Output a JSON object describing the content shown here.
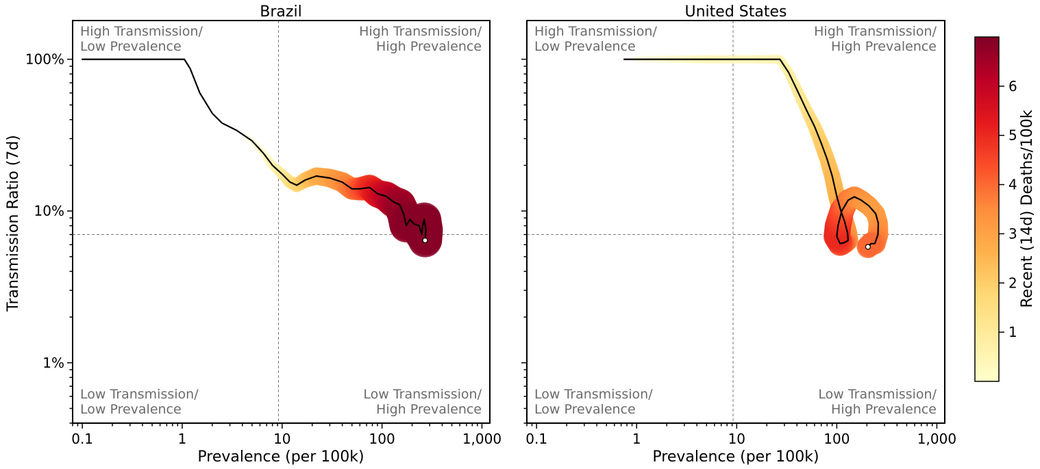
{
  "chart_data": [
    {
      "type": "scatter",
      "title": "Brazil",
      "xlabel": "Prevalence (per 100k)",
      "ylabel": "Transmission Ratio (7d)",
      "x_scale": "log",
      "y_scale": "log",
      "xlim": [
        0.08,
        1200
      ],
      "ylim": [
        0.004,
        1.8
      ],
      "x_ticks": [
        {
          "value": 0.1,
          "label": "0.1"
        },
        {
          "value": 1,
          "label": "1"
        },
        {
          "value": 10,
          "label": "10"
        },
        {
          "value": 100,
          "label": "100"
        },
        {
          "value": 1000,
          "label": "1,000"
        }
      ],
      "y_ticks": [
        {
          "value": 0.01,
          "label": "1%"
        },
        {
          "value": 0.1,
          "label": "10%"
        },
        {
          "value": 1,
          "label": "100%"
        }
      ],
      "reference_lines": {
        "x": 9.2,
        "y": 0.07
      },
      "quadrant_labels": {
        "top_left": [
          "High Transmission/",
          "Low Prevalence"
        ],
        "top_right": [
          "High Transmission/",
          "High Prevalence"
        ],
        "bottom_left": [
          "Low Transmission/",
          "Low Prevalence"
        ],
        "bottom_right": [
          "Low Transmission/",
          "High Prevalence"
        ]
      },
      "grid": false,
      "trail": [
        {
          "x": 0.1,
          "y": 1.0,
          "d": 0
        },
        {
          "x": 0.3,
          "y": 1.0,
          "d": 0
        },
        {
          "x": 1.05,
          "y": 1.0,
          "d": 0
        },
        {
          "x": 1.2,
          "y": 0.87,
          "d": 0
        },
        {
          "x": 1.5,
          "y": 0.6,
          "d": 0
        },
        {
          "x": 2.0,
          "y": 0.44,
          "d": 0
        },
        {
          "x": 2.5,
          "y": 0.38,
          "d": 0
        },
        {
          "x": 3.5,
          "y": 0.34,
          "d": 0
        },
        {
          "x": 5.0,
          "y": 0.29,
          "d": 0.1
        },
        {
          "x": 6.5,
          "y": 0.24,
          "d": 0.3
        },
        {
          "x": 8.0,
          "y": 0.2,
          "d": 0.6
        },
        {
          "x": 10.0,
          "y": 0.175,
          "d": 1.0
        },
        {
          "x": 12.0,
          "y": 0.155,
          "d": 1.4
        },
        {
          "x": 14.0,
          "y": 0.148,
          "d": 1.8
        },
        {
          "x": 17.0,
          "y": 0.16,
          "d": 2.2
        },
        {
          "x": 22.0,
          "y": 0.17,
          "d": 2.7
        },
        {
          "x": 30.0,
          "y": 0.165,
          "d": 3.0
        },
        {
          "x": 40.0,
          "y": 0.155,
          "d": 3.4
        },
        {
          "x": 50.0,
          "y": 0.14,
          "d": 3.8
        },
        {
          "x": 60.0,
          "y": 0.14,
          "d": 4.2
        },
        {
          "x": 75.0,
          "y": 0.143,
          "d": 4.8
        },
        {
          "x": 90.0,
          "y": 0.13,
          "d": 5.3
        },
        {
          "x": 110.0,
          "y": 0.125,
          "d": 5.8
        },
        {
          "x": 130.0,
          "y": 0.115,
          "d": 6.2
        },
        {
          "x": 150.0,
          "y": 0.11,
          "d": 6.5
        },
        {
          "x": 165.0,
          "y": 0.095,
          "d": 6.7
        },
        {
          "x": 175.0,
          "y": 0.08,
          "d": 6.8
        },
        {
          "x": 190.0,
          "y": 0.088,
          "d": 6.85
        },
        {
          "x": 210.0,
          "y": 0.082,
          "d": 6.9
        },
        {
          "x": 235.0,
          "y": 0.08,
          "d": 6.9
        },
        {
          "x": 250.0,
          "y": 0.07,
          "d": 6.9
        },
        {
          "x": 255.0,
          "y": 0.08,
          "d": 6.9
        },
        {
          "x": 265.0,
          "y": 0.088,
          "d": 6.9
        },
        {
          "x": 275.0,
          "y": 0.075,
          "d": 6.9
        },
        {
          "x": 270.0,
          "y": 0.064,
          "d": 6.9
        }
      ]
    },
    {
      "type": "scatter",
      "title": "United States",
      "xlabel": "Prevalence (per 100k)",
      "ylabel": "",
      "x_scale": "log",
      "y_scale": "log",
      "xlim": [
        0.08,
        1200
      ],
      "ylim": [
        0.004,
        1.8
      ],
      "x_ticks": [
        {
          "value": 0.1,
          "label": "0.1"
        },
        {
          "value": 1,
          "label": "1"
        },
        {
          "value": 10,
          "label": "10"
        },
        {
          "value": 100,
          "label": "100"
        },
        {
          "value": 1000,
          "label": "1,000"
        }
      ],
      "y_ticks": [
        {
          "value": 0.01,
          "label": ""
        },
        {
          "value": 0.1,
          "label": ""
        },
        {
          "value": 1,
          "label": ""
        }
      ],
      "reference_lines": {
        "x": 9.2,
        "y": 0.07
      },
      "quadrant_labels": {
        "top_left": [
          "High Transmission/",
          "Low Prevalence"
        ],
        "top_right": [
          "High Transmission/",
          "High Prevalence"
        ],
        "bottom_left": [
          "Low Transmission/",
          "Low Prevalence"
        ],
        "bottom_right": [
          "Low Transmission/",
          "High Prevalence"
        ]
      },
      "grid": false,
      "trail": [
        {
          "x": 0.75,
          "y": 1.0,
          "d": 0
        },
        {
          "x": 5.0,
          "y": 1.0,
          "d": 0.5
        },
        {
          "x": 15.0,
          "y": 1.0,
          "d": 0.5
        },
        {
          "x": 27.0,
          "y": 1.0,
          "d": 0.6
        },
        {
          "x": 33.0,
          "y": 0.82,
          "d": 0.8
        },
        {
          "x": 40.0,
          "y": 0.63,
          "d": 1.0
        },
        {
          "x": 50.0,
          "y": 0.46,
          "d": 1.3
        },
        {
          "x": 60.0,
          "y": 0.36,
          "d": 1.7
        },
        {
          "x": 70.0,
          "y": 0.28,
          "d": 2.0
        },
        {
          "x": 80.0,
          "y": 0.22,
          "d": 2.2
        },
        {
          "x": 90.0,
          "y": 0.17,
          "d": 2.4
        },
        {
          "x": 100.0,
          "y": 0.125,
          "d": 2.6
        },
        {
          "x": 110.0,
          "y": 0.1,
          "d": 2.8
        },
        {
          "x": 120.0,
          "y": 0.085,
          "d": 3.0
        },
        {
          "x": 128.0,
          "y": 0.072,
          "d": 3.2
        },
        {
          "x": 130.0,
          "y": 0.064,
          "d": 3.4
        },
        {
          "x": 120.0,
          "y": 0.062,
          "d": 3.8
        },
        {
          "x": 108.0,
          "y": 0.061,
          "d": 4.5
        },
        {
          "x": 100.0,
          "y": 0.068,
          "d": 5.0
        },
        {
          "x": 103.0,
          "y": 0.08,
          "d": 5.0
        },
        {
          "x": 112.0,
          "y": 0.1,
          "d": 4.5
        },
        {
          "x": 130.0,
          "y": 0.118,
          "d": 3.8
        },
        {
          "x": 150.0,
          "y": 0.124,
          "d": 3.6
        },
        {
          "x": 175.0,
          "y": 0.118,
          "d": 3.4
        },
        {
          "x": 210.0,
          "y": 0.108,
          "d": 3.2
        },
        {
          "x": 245.0,
          "y": 0.096,
          "d": 3.1
        },
        {
          "x": 260.0,
          "y": 0.083,
          "d": 3.2
        },
        {
          "x": 258.0,
          "y": 0.07,
          "d": 3.5
        },
        {
          "x": 240.0,
          "y": 0.061,
          "d": 3.8
        },
        {
          "x": 220.0,
          "y": 0.061,
          "d": 4.0
        },
        {
          "x": 205.0,
          "y": 0.058,
          "d": 4.0
        }
      ]
    }
  ],
  "colorbar": {
    "label": "Recent (14d) Deaths/100k",
    "min": 0,
    "max": 7,
    "ticks": [
      {
        "value": 1,
        "label": "1"
      },
      {
        "value": 2,
        "label": "2"
      },
      {
        "value": 3,
        "label": "3"
      },
      {
        "value": 4,
        "label": "4"
      },
      {
        "value": 5,
        "label": "5"
      },
      {
        "value": 6,
        "label": "6"
      }
    ],
    "colors": [
      "#ffffcc",
      "#ffeda0",
      "#fed976",
      "#feb24c",
      "#fd8d3c",
      "#fc4e2a",
      "#e31a1c",
      "#bd0026",
      "#800026"
    ]
  }
}
